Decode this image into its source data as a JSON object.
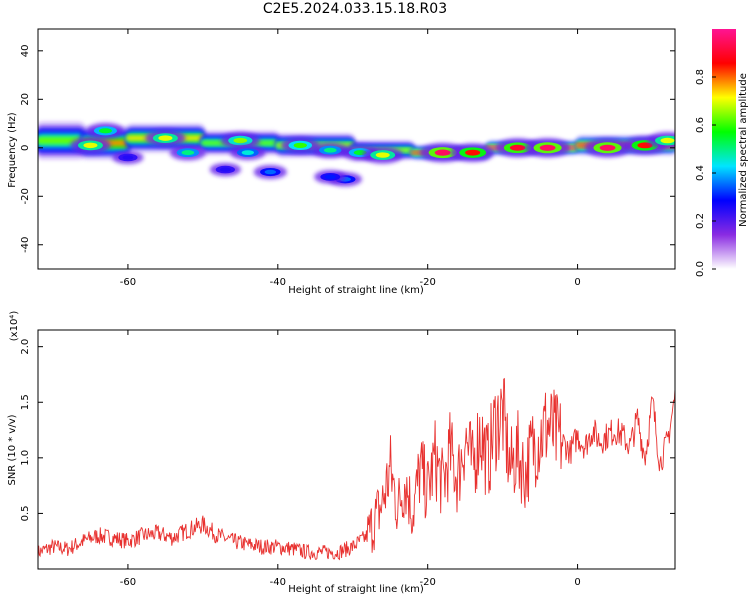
{
  "title": "C2E5.2024.033.15.18.R03",
  "chart_data": [
    {
      "type": "heatmap",
      "xlabel": "Height of straight line (km)",
      "ylabel": "Frequency (Hz)",
      "xlim": [
        -72,
        13
      ],
      "ylim": [
        -50,
        49
      ],
      "x_ticks": [
        -60,
        -40,
        -20,
        0
      ],
      "y_ticks": [
        -40,
        -20,
        0,
        20,
        40
      ],
      "colorbar": {
        "label": "Normalized spectral amplitude",
        "range": [
          0.0,
          1.0
        ],
        "ticks": [
          0.0,
          0.2,
          0.4,
          0.6,
          0.8
        ],
        "tick_labels": [
          "0.0",
          "0.2",
          "0.4",
          "0.6",
          "0.8"
        ],
        "colors": [
          "#ffffff",
          "#8a2be2",
          "#0000ff",
          "#00e5ff",
          "#00ff00",
          "#ffff00",
          "#ff0000",
          "#ff1493"
        ]
      },
      "bands": [
        {
          "x": [
            -72,
            -66
          ],
          "y": 3,
          "h": 8,
          "amp": 0.55
        },
        {
          "x": [
            -66,
            -60
          ],
          "y": 2,
          "h": 7,
          "amp": 0.7
        },
        {
          "x": [
            -60,
            -50
          ],
          "y": 4,
          "h": 6,
          "amp": 0.65
        },
        {
          "x": [
            -50,
            -40
          ],
          "y": 2,
          "h": 5,
          "amp": 0.55
        },
        {
          "x": [
            -40,
            -30
          ],
          "y": 1,
          "h": 5,
          "amp": 0.6
        },
        {
          "x": [
            -30,
            -22
          ],
          "y": -1,
          "h": 4,
          "amp": 0.6
        },
        {
          "x": [
            -22,
            -12
          ],
          "y": -2,
          "h": 3,
          "amp": 0.85
        },
        {
          "x": [
            -12,
            0
          ],
          "y": 0,
          "h": 3,
          "amp": 0.9
        },
        {
          "x": [
            0,
            13
          ],
          "y": 1,
          "h": 4,
          "amp": 0.85
        }
      ],
      "blobs": [
        {
          "x": -65,
          "y": 1,
          "amp": 0.7
        },
        {
          "x": -63,
          "y": 7,
          "amp": 0.55
        },
        {
          "x": -55,
          "y": 4,
          "amp": 0.7
        },
        {
          "x": -52,
          "y": -2,
          "amp": 0.5
        },
        {
          "x": -45,
          "y": 3,
          "amp": 0.65
        },
        {
          "x": -44,
          "y": -2,
          "amp": 0.45
        },
        {
          "x": -37,
          "y": 1,
          "amp": 0.6
        },
        {
          "x": -33,
          "y": -1,
          "amp": 0.5
        },
        {
          "x": -29,
          "y": -2,
          "amp": 0.55
        },
        {
          "x": -26,
          "y": -3,
          "amp": 0.7
        },
        {
          "x": -18,
          "y": -2,
          "amp": 0.95
        },
        {
          "x": -14,
          "y": -2,
          "amp": 0.85
        },
        {
          "x": -8,
          "y": 0,
          "amp": 0.9
        },
        {
          "x": -4,
          "y": 0,
          "amp": 0.95
        },
        {
          "x": 4,
          "y": 0,
          "amp": 0.95
        },
        {
          "x": 9,
          "y": 1,
          "amp": 0.85
        },
        {
          "x": 12,
          "y": 3,
          "amp": 0.7
        },
        {
          "x": -41,
          "y": -10,
          "amp": 0.35
        },
        {
          "x": -31,
          "y": -13,
          "amp": 0.35
        },
        {
          "x": -33,
          "y": -12,
          "amp": 0.3
        },
        {
          "x": -47,
          "y": -9,
          "amp": 0.25
        },
        {
          "x": -60,
          "y": -4,
          "amp": 0.25
        }
      ]
    },
    {
      "type": "line",
      "xlabel": "Height of straight line (km)",
      "ylabel": "SNR (10 * v/v)",
      "y_multiplier": "(x10⁴)",
      "xlim": [
        -72,
        13
      ],
      "ylim": [
        0,
        2.15
      ],
      "x_ticks": [
        -60,
        -40,
        -20,
        0
      ],
      "y_ticks": [
        0.5,
        1.0,
        1.5,
        2.0
      ],
      "y_tick_labels": [
        "0.5",
        "1.0",
        "1.5",
        "2.0"
      ],
      "series": [
        {
          "color": "#e8312f",
          "x": [
            -72,
            -70,
            -68,
            -66,
            -64,
            -62,
            -60,
            -58,
            -56,
            -54,
            -52,
            -50,
            -48,
            -46,
            -44,
            -42,
            -40,
            -38,
            -36,
            -34,
            -32,
            -30,
            -28,
            -27,
            -26,
            -25,
            -24,
            -23,
            -22,
            -21,
            -20,
            -19,
            -18,
            -17,
            -16,
            -15,
            -14,
            -13,
            -12,
            -11,
            -10,
            -9,
            -8,
            -7,
            -6,
            -5,
            -4,
            -3,
            -2,
            -1,
            0,
            1,
            2,
            3,
            4,
            5,
            6,
            7,
            8,
            9,
            10,
            11,
            12,
            13
          ],
          "values": [
            0.15,
            0.2,
            0.18,
            0.25,
            0.3,
            0.28,
            0.25,
            0.3,
            0.32,
            0.28,
            0.35,
            0.4,
            0.3,
            0.25,
            0.22,
            0.2,
            0.2,
            0.18,
            0.15,
            0.15,
            0.15,
            0.2,
            0.3,
            0.45,
            0.6,
            0.9,
            0.55,
            0.8,
            0.5,
            0.9,
            0.7,
            1.0,
            0.75,
            1.05,
            0.8,
            1.2,
            0.9,
            1.25,
            0.95,
            1.3,
            1.4,
            0.9,
            1.05,
            0.85,
            1.1,
            1.2,
            1.3,
            1.2,
            1.15,
            1.05,
            1.2,
            1.1,
            1.25,
            1.15,
            1.2,
            1.25,
            1.2,
            1.1,
            1.35,
            1.0,
            1.5,
            0.95,
            1.15,
            1.55
          ]
        }
      ]
    }
  ]
}
